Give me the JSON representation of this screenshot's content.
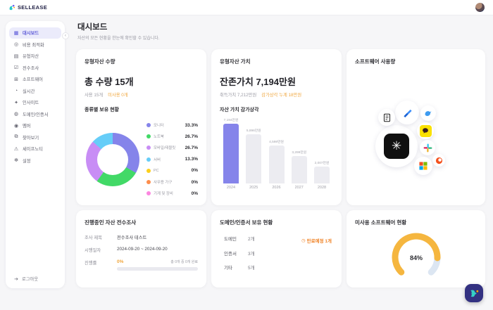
{
  "topbar": {
    "logo_text": "SELLEASE"
  },
  "sidebar": {
    "items": [
      {
        "label": "대시보드",
        "icon": "dashboard-icon",
        "glyph": "▦",
        "active": true
      },
      {
        "label": "비용 최적화",
        "icon": "cost-optimize-icon",
        "glyph": "◎",
        "active": false
      },
      {
        "label": "유형자산",
        "icon": "tangible-asset-icon",
        "glyph": "▤",
        "active": false
      },
      {
        "label": "전수조사",
        "icon": "survey-icon",
        "glyph": "☑",
        "active": false
      },
      {
        "label": "소프트웨어",
        "icon": "software-icon",
        "glyph": "⊞",
        "active": false
      },
      {
        "label": "실시간",
        "icon": "realtime-clock-icon",
        "glyph": "◔",
        "active": false
      },
      {
        "label": "인사이트",
        "icon": "insight-icon",
        "glyph": "✦",
        "active": false
      },
      {
        "label": "도메인/인증서",
        "icon": "domain-cert-icon",
        "glyph": "◍",
        "active": false
      },
      {
        "label": "멤버",
        "icon": "member-icon",
        "glyph": "◉",
        "active": false
      },
      {
        "label": "찾아보기",
        "icon": "browse-icon",
        "glyph": "⧉",
        "active": false
      },
      {
        "label": "세이프노티",
        "icon": "safenoti-bell-icon",
        "glyph": "⚠",
        "active": false
      },
      {
        "label": "설정",
        "icon": "settings-gear-icon",
        "glyph": "✻",
        "active": false
      }
    ],
    "logout": {
      "label": "로그아웃",
      "glyph": "➔"
    }
  },
  "header": {
    "title": "대시보드",
    "subtitle": "자산의 모든 현황을 한눈에 확인할 수 있습니다."
  },
  "asset_quantity_card": {
    "title": "유형자산 수량",
    "total": "총 수량 15개",
    "in_use": "사용 15개",
    "unused": "미사용 0개",
    "section_label": "종류별 보유 현황"
  },
  "asset_value_card": {
    "title": "유형자산 가치",
    "residual": "잔존가치 7,194만원",
    "acquisition": "취득가치 7,212만원",
    "depreciation": "감가상각 누계 18만원",
    "section_label": "자산 가치 감가상각"
  },
  "software_usage_card": {
    "title": "소프트웨어 사용량"
  },
  "survey_card": {
    "title": "진행중인 자산 전수조사",
    "rows": [
      {
        "label": "조사 제목",
        "value": "전수조사 테스트"
      },
      {
        "label": "시행일자",
        "value": "2024-09-20 ~ 2024-09-20"
      }
    ],
    "progress_label": "진행률",
    "progress_value": "0%",
    "progress_note": "총 0개 중 0개 완료",
    "progress_percent": 0
  },
  "domain_card": {
    "title": "도메인/인증서 보유 현황",
    "rows": [
      {
        "label": "도메인",
        "value": "2개"
      },
      {
        "label": "인증서",
        "value": "3개"
      },
      {
        "label": "기타",
        "value": "5개"
      }
    ],
    "badge_glyph": "◷",
    "badge": "만료예정 1개"
  },
  "unused_software_card": {
    "title": "미사용 소프트웨어 현황"
  },
  "colors": {
    "accent_purple": "#8584ea",
    "bar_inactive": "#ececf1",
    "warning_orange": "#f0a63c",
    "gauge_value": "#f5b63f",
    "gauge_rest": "#dce6f2"
  },
  "chart_data": [
    {
      "type": "pie",
      "donut": true,
      "title": "종류별 보유 현황",
      "labels": [
        "모니터",
        "노트북",
        "모바일/태블릿",
        "서버",
        "PC",
        "사무용 가구",
        "기계 및 장비"
      ],
      "values": [
        33.3,
        26.7,
        26.7,
        13.3,
        0,
        0,
        0
      ],
      "value_labels": [
        "33.3%",
        "26.7%",
        "26.7%",
        "13.3%",
        "0%",
        "0%",
        "0%"
      ],
      "colors": [
        "#8584ea",
        "#42d967",
        "#c88df5",
        "#66cdf8",
        "#fccf1b",
        "#fd8e4c",
        "#fc86e0"
      ],
      "legend_position": "right"
    },
    {
      "type": "bar",
      "title": "자산 가치 감가상각",
      "categories": [
        "2024",
        "2025",
        "2026",
        "2027",
        "2028"
      ],
      "values": [
        7194,
        5896,
        4598,
        3299,
        2007
      ],
      "value_labels": [
        "7,194만원",
        "5,896만원",
        "4,598만원",
        "3,299만원",
        "2,007만원"
      ],
      "unit": "만원",
      "highlight_index": 0,
      "highlight_color": "#8584ea",
      "base_color": "#ececf1",
      "ylim": [
        0,
        7194
      ],
      "grid": false
    },
    {
      "type": "bubble",
      "title": "소프트웨어 사용량",
      "items": [
        {
          "name": "chatgpt",
          "x": 71,
          "y": 138,
          "d": 60
        },
        {
          "name": "jira",
          "x": 86,
          "y": 90,
          "d": 34
        },
        {
          "name": "document-app",
          "x": 57,
          "y": 97,
          "d": 24
        },
        {
          "name": "twitter",
          "x": 116,
          "y": 91,
          "d": 22
        },
        {
          "name": "kakaotalk",
          "x": 112,
          "y": 116,
          "d": 24
        },
        {
          "name": "slack",
          "x": 115,
          "y": 140,
          "d": 22
        },
        {
          "name": "app-orange",
          "x": 131,
          "y": 158,
          "d": 18
        },
        {
          "name": "microsoft",
          "x": 109,
          "y": 166,
          "d": 26
        }
      ]
    },
    {
      "type": "gauge",
      "title": "미사용 소프트웨어 현황",
      "value": 84,
      "max": 100,
      "label": "84%",
      "arc_degrees": 270,
      "value_color": "#f5b63f",
      "rest_color": "#dce6f2"
    }
  ]
}
